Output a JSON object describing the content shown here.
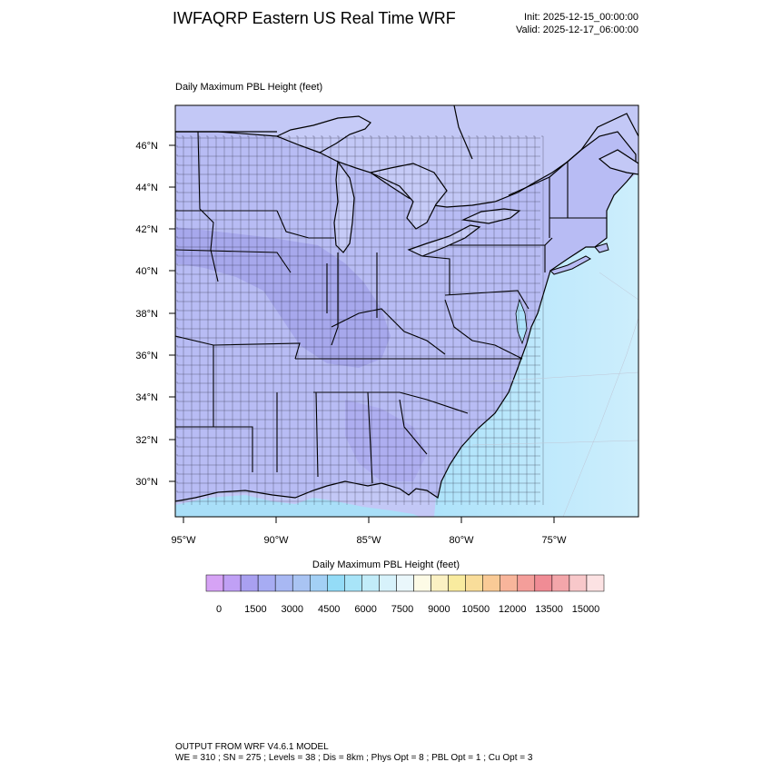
{
  "header": {
    "title": "IWFAQRP Eastern US Real Time WRF",
    "init": "Init: 2025-12-15_00:00:00",
    "valid": "Valid: 2025-12-17_06:00:00"
  },
  "panel": {
    "title": "Daily Maximum PBL Height   (feet)"
  },
  "map": {
    "lat_labels": [
      "46°N",
      "44°N",
      "42°N",
      "40°N",
      "38°N",
      "36°N",
      "34°N",
      "32°N",
      "30°N"
    ],
    "lon_labels": [
      "95°W",
      "90°W",
      "85°W",
      "80°W",
      "75°W"
    ],
    "land_color": "#b9bdf5",
    "ocean_color": "#c7e9fb"
  },
  "colorbar": {
    "title": "Daily Maximum PBL Height  (feet)",
    "labels": [
      "0",
      "1500",
      "3000",
      "4500",
      "6000",
      "7500",
      "9000",
      "10500",
      "12000",
      "13500",
      "15000"
    ],
    "colors": [
      "#d6a3f5",
      "#c0a0f5",
      "#a9a0f0",
      "#a7acf3",
      "#a8b8f3",
      "#a9c4f3",
      "#a3d0f5",
      "#94dcf7",
      "#a8e4f8",
      "#c2ecf9",
      "#d7f2fb",
      "#eaf7fb",
      "#fdfbe6",
      "#fbf1c3",
      "#f9eb9f",
      "#f9dd9a",
      "#f9ca96",
      "#f8b59b",
      "#f49e9a",
      "#f08c95",
      "#f3a6aa",
      "#f8c8ca",
      "#fce2e3"
    ]
  },
  "footer": {
    "line1": "OUTPUT FROM WRF V4.6.1 MODEL",
    "line2": "WE = 310 ; SN = 275 ; Levels = 38 ; Dis = 8km ; Phys Opt = 8 ; PBL Opt = 1 ; Cu Opt = 3"
  }
}
